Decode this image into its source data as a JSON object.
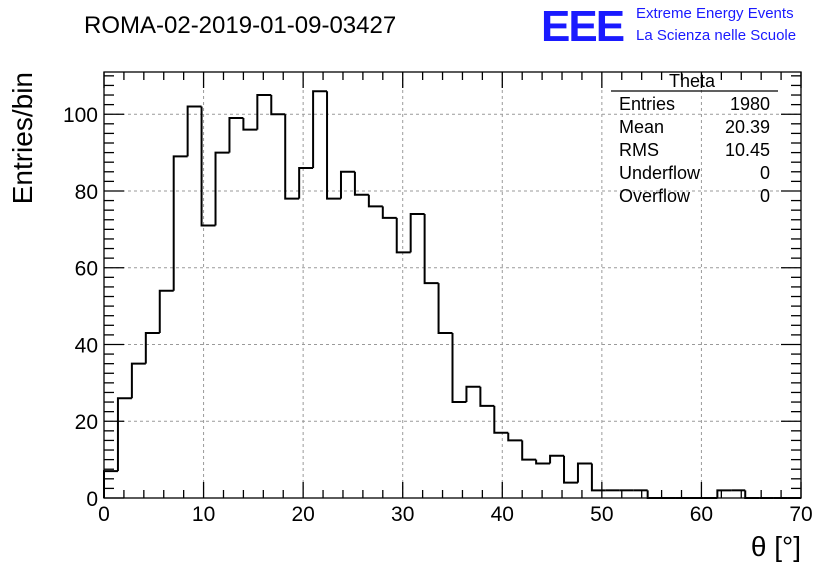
{
  "logo": {
    "mark": "EEE",
    "line1": "Extreme Energy Events",
    "line2": "La Scienza nelle Scuole",
    "color": "#1a1aff"
  },
  "chart_data": {
    "type": "bar",
    "title": "ROMA-02-2019-01-09-03427",
    "xlabel": "θ [°]",
    "ylabel": "Entries/bin",
    "xlim": [
      0,
      70
    ],
    "ylim": [
      0,
      111
    ],
    "xticks": [
      0,
      10,
      20,
      30,
      40,
      50,
      60,
      70
    ],
    "yticks": [
      0,
      20,
      40,
      60,
      80,
      100
    ],
    "grid": true,
    "bin_edges": [
      0,
      1.4,
      2.8,
      4.2,
      5.6,
      7,
      8.4,
      9.8,
      11.2,
      12.6,
      14,
      15.4,
      16.8,
      18.2,
      19.6,
      21,
      22.4,
      23.8,
      25.2,
      26.6,
      28,
      29.4,
      30.8,
      32.2,
      33.6,
      35,
      36.4,
      37.8,
      39.2,
      40.6,
      42,
      43.4,
      44.8,
      46.2,
      47.6,
      49,
      50.4,
      51.8,
      53.2,
      54.6,
      56,
      57.4,
      58.8,
      60.2,
      61.6,
      63,
      64.4,
      65.8,
      67.2,
      68.6,
      70
    ],
    "values": [
      7,
      26,
      35,
      43,
      54,
      89,
      102,
      71,
      90,
      99,
      96,
      105,
      100,
      78,
      86,
      106,
      78,
      85,
      79,
      76,
      73,
      64,
      74,
      56,
      43,
      25,
      29,
      24,
      17,
      15,
      10,
      9,
      11,
      4,
      9,
      2,
      2,
      2,
      2,
      0,
      0,
      0,
      0,
      0,
      2,
      2,
      0,
      0,
      0,
      0
    ],
    "stats": {
      "name": "Theta",
      "rows": [
        {
          "label": "Entries",
          "value": "1980"
        },
        {
          "label": "Mean",
          "value": "20.39"
        },
        {
          "label": "RMS",
          "value": "10.45"
        },
        {
          "label": "Underflow",
          "value": "0"
        },
        {
          "label": "Overflow",
          "value": "0"
        }
      ]
    }
  }
}
